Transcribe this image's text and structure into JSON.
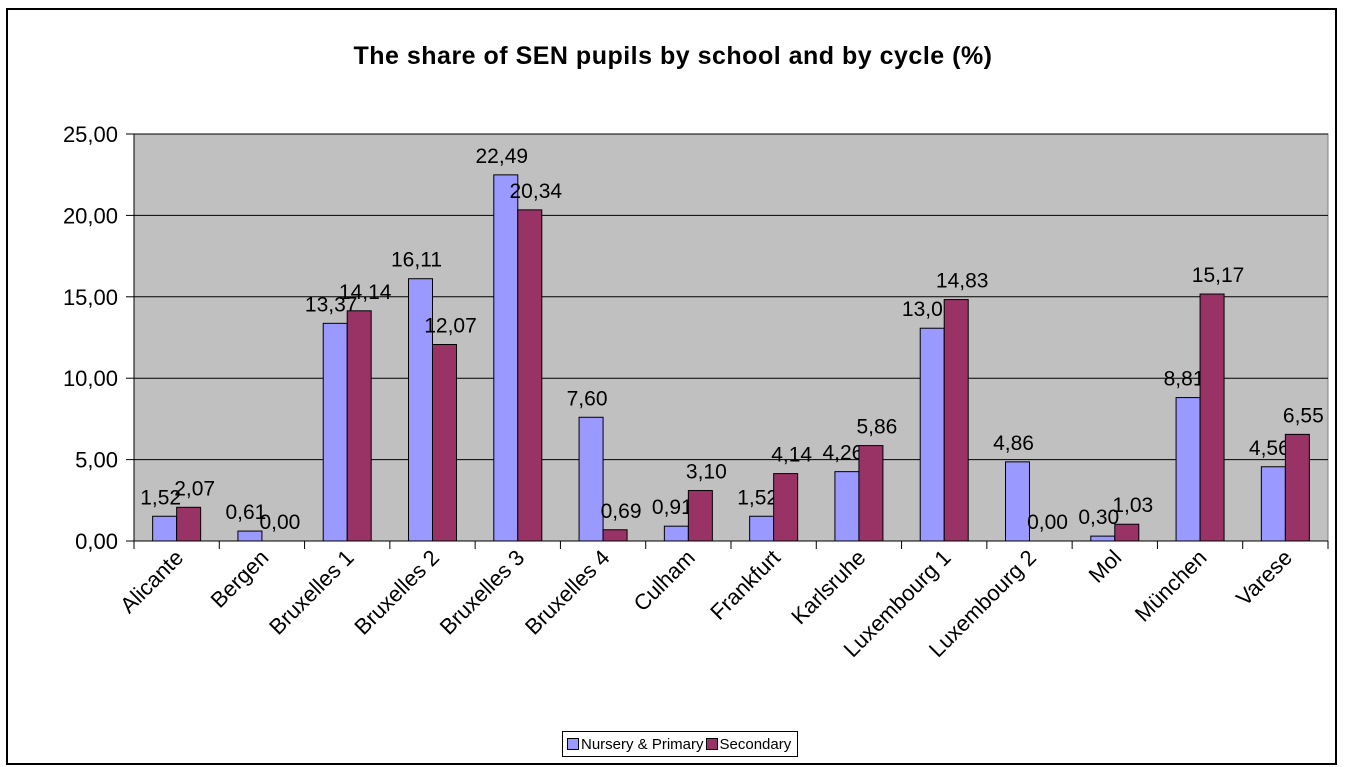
{
  "chart_data": {
    "type": "bar",
    "title": "The share of SEN pupils by school and by cycle (%)",
    "categories": [
      "Alicante",
      "Bergen",
      "Bruxelles 1",
      "Bruxelles 2",
      "Bruxelles 3",
      "Bruxelles 4",
      "Culham",
      "Frankfurt",
      "Karlsruhe",
      "Luxembourg 1",
      "Luxembourg 2",
      "Mol",
      "München",
      "Varese"
    ],
    "series": [
      {
        "name": "Nursery & Primary",
        "color": "#9999ff",
        "values": [
          1.52,
          0.61,
          13.37,
          16.11,
          22.49,
          7.6,
          0.91,
          1.52,
          4.26,
          13.07,
          4.86,
          0.3,
          8.81,
          4.56
        ],
        "labels": [
          "1,52",
          "0,61",
          "13,37",
          "16,11",
          "22,49",
          "7,60",
          "0,91",
          "1,52",
          "4,26",
          "13,07",
          "4,86",
          "0,30",
          "8,81",
          "4,56"
        ]
      },
      {
        "name": "Secondary",
        "color": "#993366",
        "values": [
          2.07,
          0.0,
          14.14,
          12.07,
          20.34,
          0.69,
          3.1,
          4.14,
          5.86,
          14.83,
          0.0,
          1.03,
          15.17,
          6.55
        ],
        "labels": [
          "2,07",
          "0,00",
          "14,14",
          "12,07",
          "20,34",
          "0,69",
          "3,10",
          "4,14",
          "5,86",
          "14,83",
          "0,00",
          "1,03",
          "15,17",
          "6,55"
        ]
      }
    ],
    "ylim": [
      0,
      25
    ],
    "yticks": [
      "0,00",
      "5,00",
      "10,00",
      "15,00",
      "20,00",
      "25,00"
    ],
    "grid": true,
    "plot_background": "#c0c0c0",
    "legend_position": "bottom"
  }
}
